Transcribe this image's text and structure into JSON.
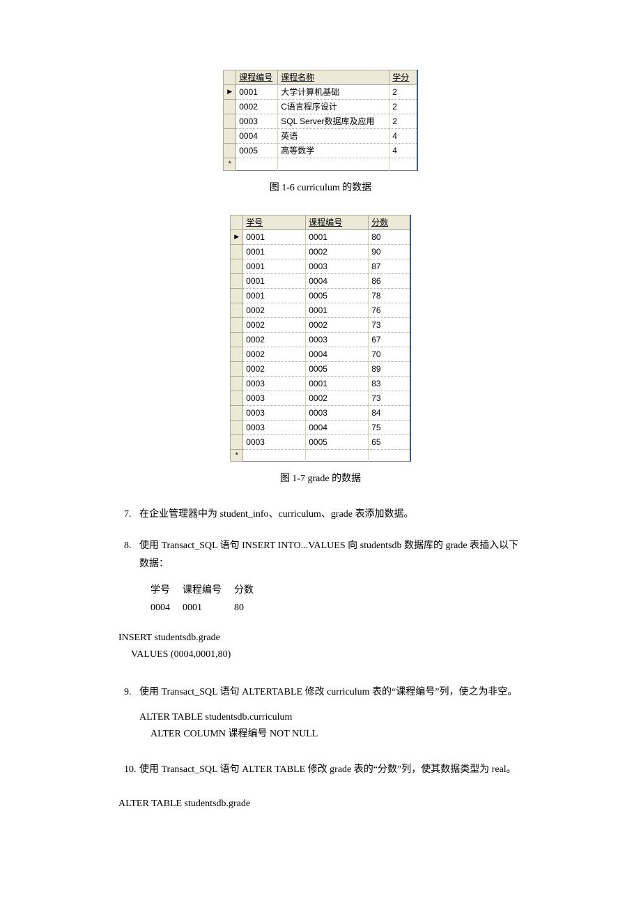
{
  "table1": {
    "columns": [
      "课程编号",
      "课程名称",
      "学分"
    ],
    "rows": [
      [
        "0001",
        "大学计算机基础",
        "2"
      ],
      [
        "0002",
        "C语言程序设计",
        "2"
      ],
      [
        "0003",
        "SQL Server数据库及应用",
        "2"
      ],
      [
        "0004",
        "英语",
        "4"
      ],
      [
        "0005",
        "高等数学",
        "4"
      ]
    ],
    "caption": "图 1-6  curriculum 的数据",
    "col_widths": [
      "60px",
      "160px",
      "40px"
    ]
  },
  "table2": {
    "columns": [
      "学号",
      "课程编号",
      "分数"
    ],
    "rows": [
      [
        "0001",
        "0001",
        "80"
      ],
      [
        "0001",
        "0002",
        "90"
      ],
      [
        "0001",
        "0003",
        "87"
      ],
      [
        "0001",
        "0004",
        "86"
      ],
      [
        "0001",
        "0005",
        "78"
      ],
      [
        "0002",
        "0001",
        "76"
      ],
      [
        "0002",
        "0002",
        "73"
      ],
      [
        "0002",
        "0003",
        "67"
      ],
      [
        "0002",
        "0004",
        "70"
      ],
      [
        "0002",
        "0005",
        "89"
      ],
      [
        "0003",
        "0001",
        "83"
      ],
      [
        "0003",
        "0002",
        "73"
      ],
      [
        "0003",
        "0003",
        "84"
      ],
      [
        "0003",
        "0004",
        "75"
      ],
      [
        "0003",
        "0005",
        "65"
      ]
    ],
    "caption": "图 1-7  grade 的数据",
    "col_widths": [
      "90px",
      "90px",
      "60px"
    ]
  },
  "q7": {
    "num": "7.",
    "text": "在企业管理器中为 student_info、curriculum、grade 表添加数据。"
  },
  "q8": {
    "num": "8.",
    "text": "使用 Transact_SQL 语句 INSERT INTO...VALUES 向 studentsdb 数据库的 grade 表插入以下数据："
  },
  "small_table": {
    "headers": [
      "学号",
      "课程编号",
      "分数"
    ],
    "row": [
      "0004",
      "0001",
      "80"
    ]
  },
  "code1": {
    "line1": "INSERT studentsdb.grade",
    "line2": "VALUES (0004,0001,80)"
  },
  "q9": {
    "num": "9.",
    "text": "使用 Transact_SQL 语句 ALTERTABLE 修改 curriculum 表的“课程编号”列，使之为非空。"
  },
  "alter1": {
    "line1": "ALTER TABLE studentsdb.curriculum",
    "line2": "ALTER COLUMN  课程编号  NOT NULL"
  },
  "q10": {
    "num": "10.",
    "text": "使用 Transact_SQL 语句 ALTER TABLE 修改 grade 表的“分数”列，使其数据类型为 real。"
  },
  "code2": {
    "line1": "ALTER TABLE studentsdb.grade"
  }
}
